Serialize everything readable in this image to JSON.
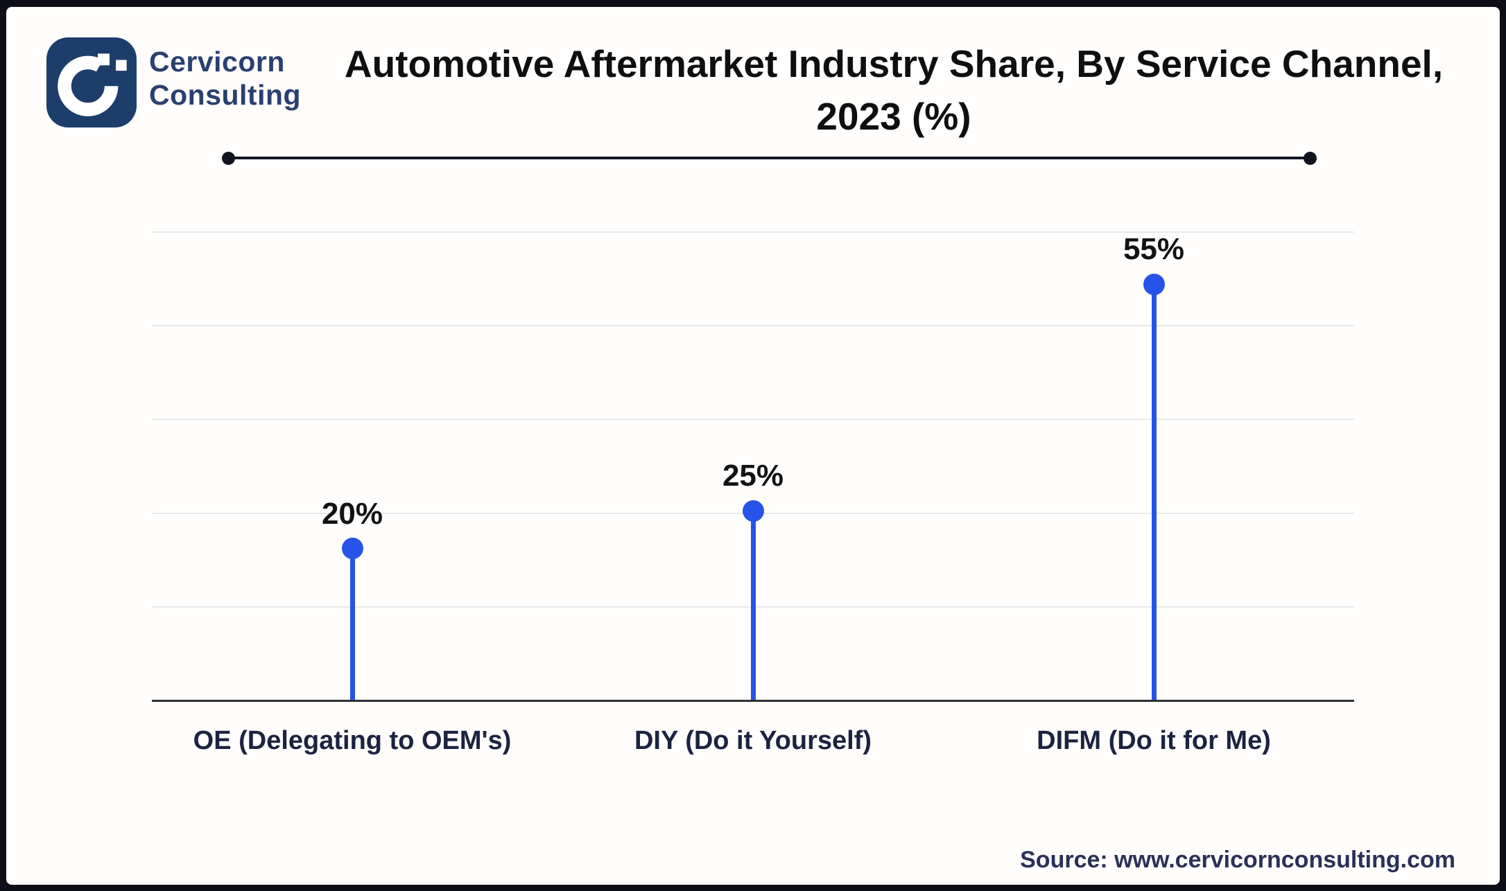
{
  "brand": {
    "line1": "Cervicorn",
    "line2": "Consulting"
  },
  "title": {
    "line1": "Automotive Aftermarket Industry Share, By Service Channel,",
    "line2": "2023 (%)"
  },
  "source_text": "Source: www.cervicornconsulting.com",
  "colors": {
    "accent_blue": "#2853e8",
    "logo_navy": "#1d3e6b",
    "brand_text": "#2a4070",
    "title_text": "#0f0f10",
    "category_text": "#1c2340",
    "source_text": "#2a3057",
    "divider": "#141627",
    "gridline": "#e9e9ea",
    "axis": "#2f2f33",
    "frame": "#0d0e18",
    "background": "#fffefc"
  },
  "chart_data": {
    "type": "bar",
    "style": "lollipop",
    "title": "Automotive Aftermarket Industry Share, By Service Channel, 2023 (%)",
    "categories": [
      "OE (Delegating to OEM's)",
      "DIY (Do it Yourself)",
      "DIFM (Do it for Me)"
    ],
    "values": [
      20,
      25,
      55
    ],
    "value_labels": [
      "20%",
      "25%",
      "55%"
    ],
    "xlabel": "",
    "ylabel": "",
    "ylim": [
      0,
      62
    ],
    "grid": true,
    "gridline_count": 5,
    "legend": false
  }
}
